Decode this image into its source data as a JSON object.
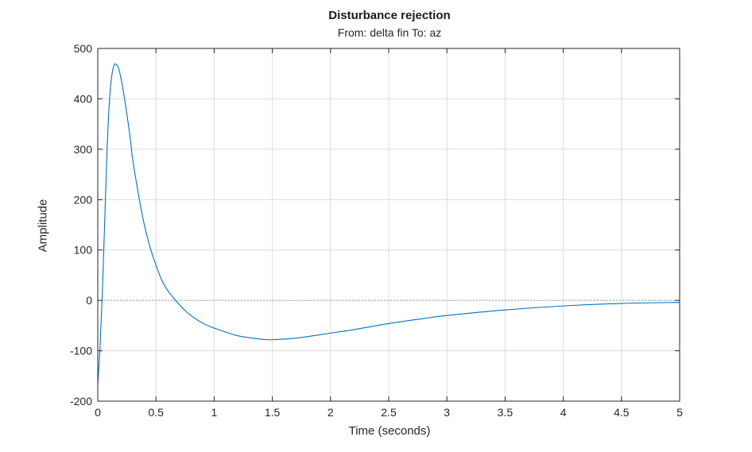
{
  "chart_data": {
    "type": "line",
    "title": "Disturbance rejection",
    "subtitle": "From: delta fin  To: az",
    "xlabel": "Time (seconds)",
    "ylabel": "Amplitude",
    "xlim": [
      0,
      5
    ],
    "ylim": [
      -200,
      500
    ],
    "xticks": [
      "0",
      "0.5",
      "1",
      "1.5",
      "2",
      "2.5",
      "3",
      "3.5",
      "4",
      "4.5",
      "5"
    ],
    "yticks": [
      "-200",
      "-100",
      "0",
      "100",
      "200",
      "300",
      "400",
      "500"
    ],
    "grid": true,
    "reference_line": 0,
    "colors": {
      "line": "#0072bd",
      "grid": "#dcdcdc",
      "axis": "#262626",
      "reference": "#8c8c8c"
    },
    "series": [
      {
        "x": [
          0,
          0.02,
          0.04,
          0.06,
          0.08,
          0.1,
          0.12,
          0.14,
          0.16,
          0.18,
          0.2,
          0.22,
          0.25,
          0.28,
          0.3,
          0.35,
          0.4,
          0.45,
          0.5,
          0.55,
          0.6,
          0.65,
          0.7,
          0.75,
          0.8,
          0.9,
          1.0,
          1.1,
          1.2,
          1.3,
          1.4,
          1.45,
          1.5,
          1.6,
          1.7,
          1.8,
          2.0,
          2.2,
          2.5,
          2.8,
          3.0,
          3.5,
          4.0,
          4.5,
          5.0
        ],
        "y": [
          -168,
          -90,
          20,
          160,
          300,
          395,
          445,
          467,
          468,
          460,
          440,
          415,
          370,
          320,
          280,
          210,
          150,
          105,
          70,
          40,
          20,
          5,
          -8,
          -20,
          -30,
          -45,
          -55,
          -63,
          -70,
          -74,
          -77,
          -78,
          -78,
          -77,
          -75,
          -72,
          -65,
          -58,
          -46,
          -36,
          -30,
          -19,
          -11,
          -6,
          -4
        ]
      }
    ]
  }
}
